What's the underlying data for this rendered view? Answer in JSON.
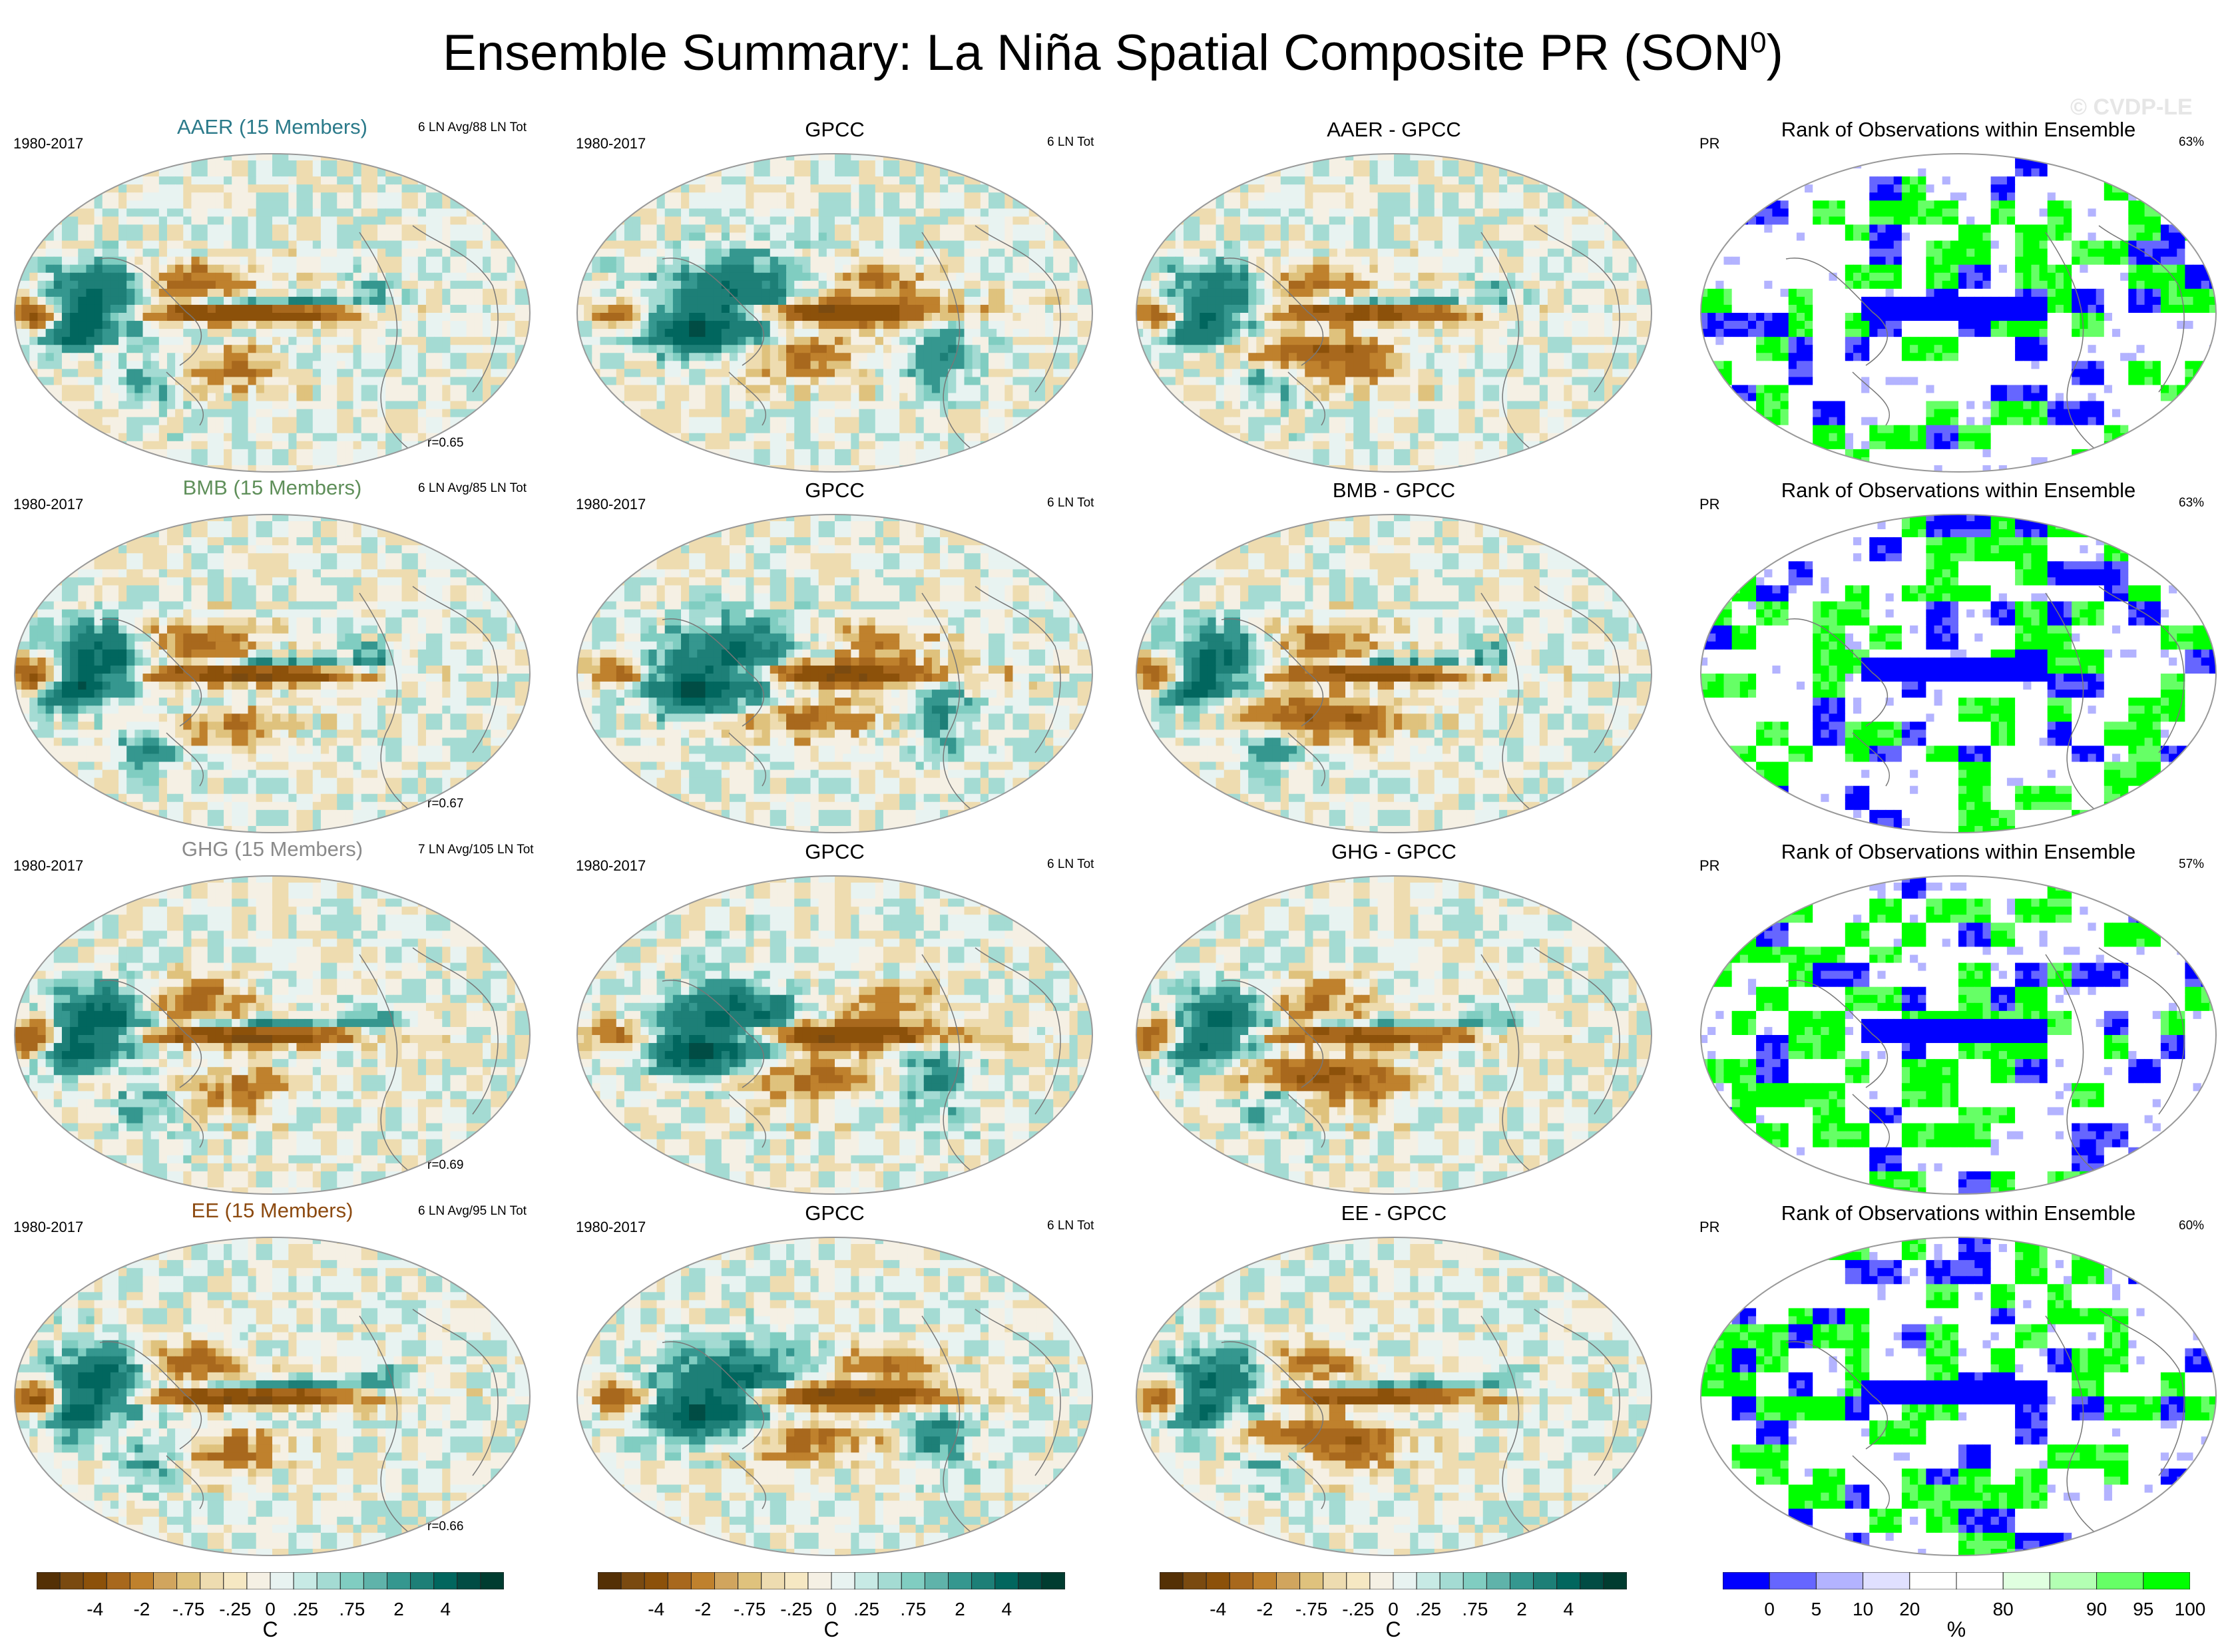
{
  "figure": {
    "title_main": "Ensemble Summary: La Niña Spatial Composite PR (SON",
    "title_sup": "0",
    "title_end": ")",
    "watermark": "© CVDP-LE"
  },
  "colors": {
    "brown_scale": [
      "#543005",
      "#7a4a10",
      "#8c510a",
      "#a8681d",
      "#bf812d",
      "#d1a55e",
      "#dfc27d",
      "#eedcb0",
      "#f6e8c3",
      "#f5f0e4",
      "#e8f3f1",
      "#c7eae5",
      "#a4dbd3",
      "#80cdc1",
      "#5fb3aa",
      "#35978f",
      "#1d7f77",
      "#01665e",
      "#014c44",
      "#003c30"
    ],
    "rank_scale": [
      "#0000ff",
      "#6666ff",
      "#b3b3ff",
      "#e0e0ff",
      "#ffffff",
      "#ffffff",
      "#e0ffe0",
      "#b3ffb3",
      "#66ff66",
      "#00ff00"
    ]
  },
  "rows": [
    {
      "model_title": "AAER (15 Members)",
      "model_color": "#2b7a8a",
      "period": "1980-2017",
      "events": "6 LN Avg/88 LN Tot",
      "corr": "r=0.65",
      "obs_title": "GPCC",
      "obs_period": "1980-2017",
      "obs_events": "6 LN Tot",
      "diff_title": "AAER - GPCC",
      "rank_title": "Rank of Observations within Ensemble",
      "rank_var": "PR",
      "rank_pct": "63%"
    },
    {
      "model_title": "BMB (15 Members)",
      "model_color": "#5f8f5a",
      "period": "1980-2017",
      "events": "6 LN Avg/85 LN Tot",
      "corr": "r=0.67",
      "obs_title": "GPCC",
      "obs_period": "1980-2017",
      "obs_events": "6 LN Tot",
      "diff_title": "BMB - GPCC",
      "rank_title": "Rank of Observations within Ensemble",
      "rank_var": "PR",
      "rank_pct": "63%"
    },
    {
      "model_title": "GHG (15 Members)",
      "model_color": "#8a8a8a",
      "period": "1980-2017",
      "events": "7 LN Avg/105 LN Tot",
      "corr": "r=0.69",
      "obs_title": "GPCC",
      "obs_period": "1980-2017",
      "obs_events": "6 LN Tot",
      "diff_title": "GHG - GPCC",
      "rank_title": "Rank of Observations within Ensemble",
      "rank_var": "PR",
      "rank_pct": "57%"
    },
    {
      "model_title": "EE (15 Members)",
      "model_color": "#8c4a10",
      "period": "1980-2017",
      "events": "6 LN Avg/95 LN Tot",
      "corr": "r=0.66",
      "obs_title": "GPCC",
      "obs_period": "1980-2017",
      "obs_events": "6 LN Tot",
      "diff_title": "EE - GPCC",
      "rank_title": "Rank of Observations within Ensemble",
      "rank_var": "PR",
      "rank_pct": "60%"
    }
  ],
  "chart_data": {
    "type": "heatmap",
    "title": "Ensemble Summary: La Niña Spatial Composite PR (SON0)",
    "panel_types": [
      "ensemble-mean composite",
      "observed composite",
      "ensemble minus observed",
      "rank of observations within ensemble"
    ],
    "composite_colorbar": {
      "labels": [
        "-4",
        "-2",
        "-.75",
        "-.25",
        "0",
        ".25",
        ".75",
        "2",
        "4"
      ],
      "unit": "C",
      "n_colors": 20
    },
    "rank_colorbar": {
      "labels": [
        "0",
        "5",
        "10",
        "20",
        "80",
        "90",
        "95",
        "100"
      ],
      "unit": "%",
      "n_colors": 10
    },
    "correlations": [
      0.65,
      0.67,
      0.69,
      0.66
    ],
    "rank_agreement_pct": [
      63,
      63,
      57,
      60
    ]
  }
}
